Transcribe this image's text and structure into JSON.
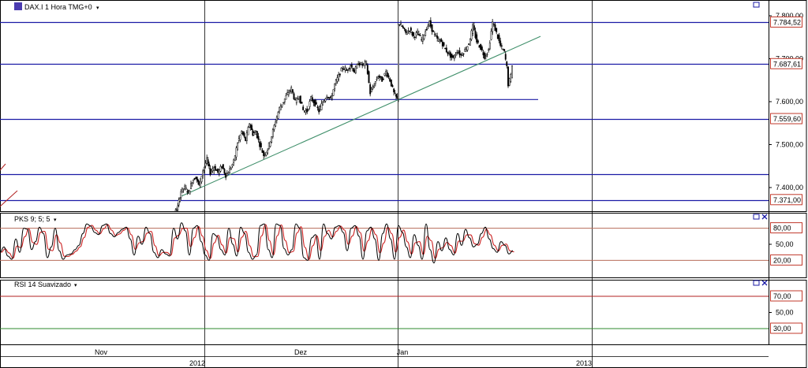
{
  "panels": {
    "price": {
      "title": "DAX.I 1 Hora TMG+0",
      "dropdown_icon": "triangle-down"
    },
    "stoch": {
      "title": "PKS 9; 5; 5",
      "dropdown_icon": "triangle-down"
    },
    "rsi": {
      "title": "RSI 14 Suavizado",
      "dropdown_icon": "triangle-down"
    }
  },
  "window_icons": [
    "maximize-icon",
    "restore-icon",
    "close-icon"
  ],
  "colors": {
    "hline": "#1b1ba6",
    "trendline": "#3f8f6a",
    "candle": "#000000",
    "stoch_main": "#000000",
    "stoch_signal": "#cc2222",
    "stoch_level": "#b76b5a",
    "rsi_70": "#b02020",
    "rsi_30": "#2d8a2d",
    "label_border": "#c0392b",
    "grid": "#000000"
  },
  "chart_data": [
    {
      "type": "candlestick",
      "title": "DAX.I 1 Hora TMG+0",
      "ylim": [
        7300,
        7830
      ],
      "y_ticks": [
        7800,
        7700,
        7600,
        7500,
        7400
      ],
      "y_tick_labels": [
        "7.800,00",
        "7.700,00",
        "7.600,00",
        "7.500,00",
        "7.400,00"
      ],
      "horizontal_lines": [
        {
          "value": 7784.52,
          "label": "7.784,52",
          "flag": true
        },
        {
          "value": 7687.61,
          "label": "7.687,61",
          "flag": true
        },
        {
          "value": 7559.6,
          "label": "7.559,60",
          "flag": true
        },
        {
          "value": 7432,
          "label": "",
          "flag": false
        },
        {
          "value": 7371.0,
          "label": "7.371,00",
          "flag": true
        }
      ],
      "segments": [
        {
          "name": "support-segment",
          "x": [
            392,
            682
          ],
          "y": [
            7605,
            7605
          ]
        },
        {
          "name": "trendline",
          "x": [
            230,
            685
          ],
          "y": [
            7380,
            7752
          ]
        }
      ],
      "close_path": [
        [
          198,
          7300
        ],
        [
          203,
          7308
        ],
        [
          208,
          7318
        ],
        [
          212,
          7305
        ],
        [
          218,
          7322
        ],
        [
          222,
          7340
        ],
        [
          226,
          7355
        ],
        [
          230,
          7392
        ],
        [
          235,
          7400
        ],
        [
          240,
          7388
        ],
        [
          244,
          7415
        ],
        [
          249,
          7425
        ],
        [
          253,
          7405
        ],
        [
          258,
          7440
        ],
        [
          263,
          7465
        ],
        [
          267,
          7435
        ],
        [
          272,
          7448
        ],
        [
          277,
          7435
        ],
        [
          282,
          7450
        ],
        [
          287,
          7428
        ],
        [
          292,
          7442
        ],
        [
          297,
          7460
        ],
        [
          302,
          7505
        ],
        [
          307,
          7530
        ],
        [
          312,
          7510
        ],
        [
          317,
          7550
        ],
        [
          321,
          7525
        ],
        [
          325,
          7530
        ],
        [
          330,
          7500
        ],
        [
          335,
          7475
        ],
        [
          340,
          7490
        ],
        [
          345,
          7520
        ],
        [
          350,
          7555
        ],
        [
          355,
          7585
        ],
        [
          360,
          7600
        ],
        [
          365,
          7618
        ],
        [
          370,
          7630
        ],
        [
          375,
          7600
        ],
        [
          380,
          7612
        ],
        [
          385,
          7580
        ],
        [
          390,
          7578
        ],
        [
          395,
          7608
        ],
        [
          400,
          7595
        ],
        [
          405,
          7578
        ],
        [
          410,
          7600
        ],
        [
          415,
          7615
        ],
        [
          420,
          7605
        ],
        [
          425,
          7640
        ],
        [
          430,
          7660
        ],
        [
          435,
          7680
        ],
        [
          440,
          7672
        ],
        [
          445,
          7685
        ],
        [
          450,
          7670
        ],
        [
          455,
          7690
        ],
        [
          460,
          7685
        ],
        [
          465,
          7690
        ],
        [
          470,
          7620
        ],
        [
          475,
          7640
        ],
        [
          480,
          7660
        ],
        [
          485,
          7650
        ],
        [
          490,
          7670
        ],
        [
          495,
          7650
        ],
        [
          500,
          7620
        ],
        [
          504,
          7606
        ],
        [
          506,
          7782
        ],
        [
          510,
          7775
        ],
        [
          515,
          7760
        ],
        [
          520,
          7768
        ],
        [
          525,
          7752
        ],
        [
          530,
          7760
        ],
        [
          535,
          7744
        ],
        [
          540,
          7765
        ],
        [
          545,
          7784
        ],
        [
          550,
          7760
        ],
        [
          555,
          7745
        ],
        [
          560,
          7740
        ],
        [
          565,
          7722
        ],
        [
          570,
          7710
        ],
        [
          575,
          7700
        ],
        [
          580,
          7718
        ],
        [
          585,
          7708
        ],
        [
          590,
          7720
        ],
        [
          595,
          7735
        ],
        [
          600,
          7775
        ],
        [
          605,
          7740
        ],
        [
          610,
          7725
        ],
        [
          615,
          7705
        ],
        [
          620,
          7720
        ],
        [
          625,
          7785
        ],
        [
          630,
          7760
        ],
        [
          635,
          7730
        ],
        [
          640,
          7715
        ],
        [
          643,
          7680
        ],
        [
          645,
          7640
        ],
        [
          648,
          7660
        ],
        [
          650,
          7687
        ]
      ]
    },
    {
      "type": "line",
      "title": "PKS 9; 5; 5",
      "ylim": [
        0,
        100
      ],
      "y_ticks": [
        50
      ],
      "y_tick_labels": [
        "50,00"
      ],
      "levels": [
        {
          "value": 80,
          "label": "80,00"
        },
        {
          "value": 20,
          "label": "20,00"
        }
      ],
      "series": [
        {
          "values_x": [
            0,
            5,
            10,
            15,
            20,
            25,
            30,
            35,
            40,
            45,
            50,
            55,
            60,
            65,
            70,
            75,
            80,
            85,
            90,
            95,
            100,
            105,
            110,
            115,
            120,
            125,
            130,
            135,
            140,
            145,
            150,
            155,
            160,
            165,
            170,
            175,
            180,
            185,
            190,
            195,
            200,
            205,
            210,
            215,
            220,
            225,
            230,
            235,
            240,
            245,
            250,
            255,
            260,
            265,
            270,
            275,
            280,
            285,
            290,
            295,
            300,
            305,
            310,
            315,
            320,
            325,
            330,
            335,
            340,
            345,
            350,
            355,
            360,
            365,
            370,
            375,
            380,
            385,
            390,
            395,
            400,
            405,
            410,
            415,
            420,
            425,
            430,
            435,
            440,
            445,
            450,
            455,
            460,
            465,
            470,
            475,
            480,
            485,
            490,
            495,
            500,
            505,
            510,
            515,
            520,
            525,
            530,
            535,
            540,
            545,
            550,
            555,
            560,
            565,
            570,
            575,
            580,
            585,
            590,
            595,
            600,
            605,
            610,
            615,
            620,
            625,
            630,
            635,
            640,
            645,
            650
          ],
          "values": [
            35,
            45,
            28,
            22,
            60,
            35,
            80,
            78,
            40,
            55,
            82,
            70,
            25,
            45,
            80,
            38,
            22,
            30,
            32,
            40,
            48,
            70,
            88,
            84,
            72,
            68,
            85,
            88,
            70,
            64,
            72,
            78,
            82,
            60,
            30,
            65,
            50,
            82,
            70,
            35,
            25,
            40,
            32,
            28,
            80,
            60,
            90,
            75,
            30,
            80,
            85,
            55,
            30,
            20,
            70,
            65,
            40,
            30,
            80,
            50,
            28,
            82,
            70,
            35,
            22,
            30,
            85,
            88,
            40,
            25,
            88,
            85,
            42,
            30,
            40,
            88,
            80,
            25,
            20,
            62,
            68,
            22,
            88,
            70,
            60,
            82,
            85,
            72,
            38,
            80,
            85,
            65,
            22,
            75,
            82,
            60,
            20,
            70,
            88,
            60,
            22,
            85,
            72,
            45,
            25,
            68,
            48,
            22,
            88,
            40,
            15,
            55,
            38,
            62,
            40,
            30,
            70,
            48,
            78,
            62,
            45,
            50,
            70,
            82,
            60,
            42,
            35,
            55,
            48,
            32,
            38
          ]
        }
      ]
    },
    {
      "type": "line",
      "title": "RSI 14 Suavizado",
      "ylim": [
        0,
        100
      ],
      "y_ticks": [
        50
      ],
      "y_tick_labels": [
        "50,00"
      ],
      "levels": [
        {
          "value": 70,
          "label": "70,00"
        },
        {
          "value": 30,
          "label": "30,00"
        }
      ],
      "series": []
    }
  ],
  "x_axis": {
    "month_labels": [
      {
        "label": "Nov",
        "x": 128
      },
      {
        "label": "Dez",
        "x": 381
      },
      {
        "label": "Jan",
        "x": 510
      }
    ],
    "year_labels": [
      {
        "label": "2012",
        "x": 250
      },
      {
        "label": "2013",
        "x": 740
      }
    ],
    "separators": [
      259,
      504,
      750
    ]
  }
}
